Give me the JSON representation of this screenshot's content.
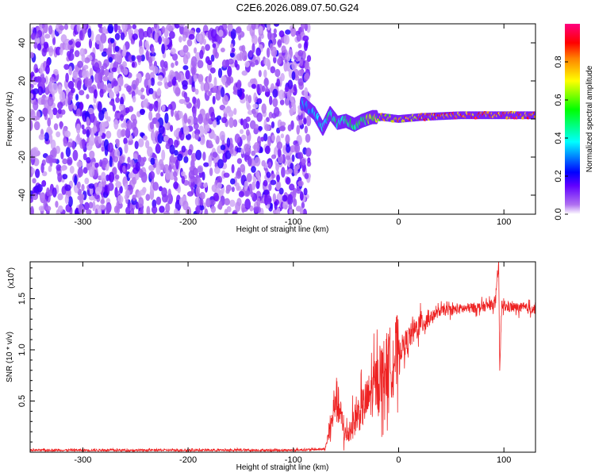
{
  "title": "C2E6.2026.089.07.50.G24",
  "chart_data": [
    {
      "type": "heatmap",
      "xlabel": "Height of straight line (km)",
      "ylabel": "Frequency (Hz)",
      "xlim": [
        -350,
        130
      ],
      "ylim": [
        -50,
        50
      ],
      "xticks": [
        -300,
        -200,
        -100,
        0,
        100
      ],
      "yticks": [
        -40,
        -20,
        0,
        20,
        40
      ],
      "colorbar": {
        "label": "Normalized spectral amplitude",
        "range": [
          0,
          1
        ],
        "ticks": [
          "0.0",
          "0.2",
          "0.4",
          "0.6",
          "0.8"
        ],
        "colors": [
          "#ffffff",
          "#a020f0",
          "#0000ff",
          "#00ffff",
          "#00ff00",
          "#ffff00",
          "#ff8000",
          "#ff0000",
          "#ff0080"
        ]
      },
      "noise_region_x": [
        -350,
        -88
      ],
      "signal_track": {
        "x": [
          -90,
          -80,
          -72,
          -65,
          -58,
          -50,
          -42,
          -35,
          -25,
          -15,
          0,
          20,
          60,
          90,
          100,
          130
        ],
        "freq": [
          8,
          3,
          -5,
          3,
          -2,
          -1,
          -3,
          -1,
          1,
          1,
          0,
          1,
          2,
          2,
          2,
          2
        ],
        "amplitude": [
          0.35,
          0.4,
          0.4,
          0.5,
          0.5,
          0.5,
          0.55,
          0.6,
          0.7,
          0.8,
          0.85,
          0.9,
          0.95,
          0.95,
          0.95,
          0.95
        ]
      }
    },
    {
      "type": "line",
      "xlabel": "Height of straight line (km)",
      "ylabel": "SNR (10 * v/v)",
      "yscale_label": "(x10",
      "yscale_exp": "4",
      "xlim": [
        -350,
        130
      ],
      "ylim": [
        0,
        1.86
      ],
      "xticks": [
        -300,
        -200,
        -100,
        0,
        100
      ],
      "yticks": [
        "0.5",
        "1.0",
        "1.5"
      ],
      "series": [
        {
          "name": "SNR",
          "color": "#ee2222",
          "x": [
            -350,
            -100,
            -70,
            -64,
            -60,
            -55,
            -50,
            -45,
            -40,
            -30,
            -20,
            -10,
            0,
            10,
            20,
            30,
            40,
            60,
            80,
            92,
            95,
            96,
            98,
            100,
            130
          ],
          "y": [
            0.02,
            0.02,
            0.03,
            0.25,
            0.55,
            0.35,
            0.15,
            0.25,
            0.35,
            0.5,
            0.7,
            0.85,
            0.98,
            1.12,
            1.25,
            1.32,
            1.38,
            1.4,
            1.42,
            1.45,
            1.85,
            0.8,
            1.45,
            1.42,
            1.4
          ]
        }
      ]
    }
  ]
}
